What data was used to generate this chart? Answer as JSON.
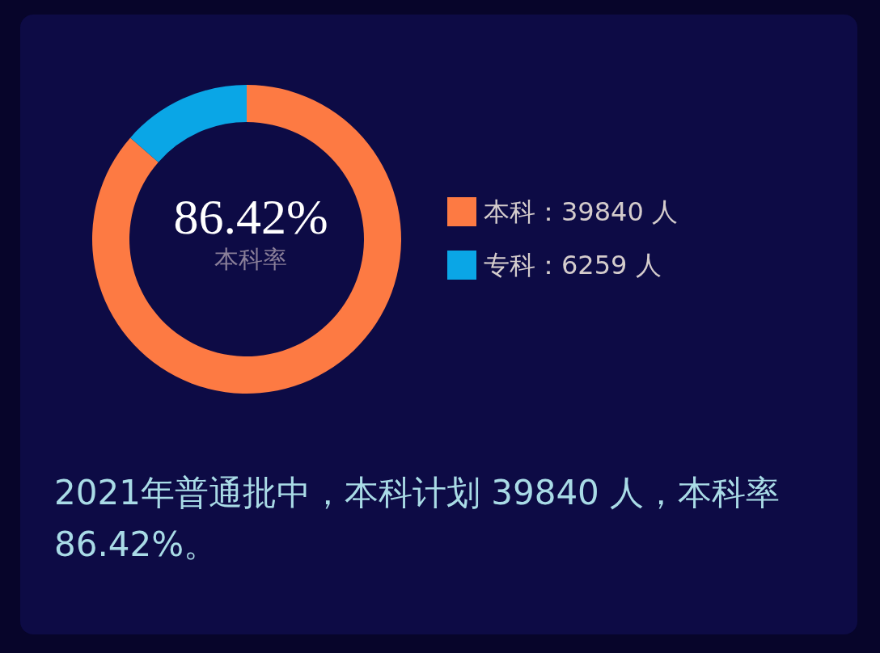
{
  "chart_data": {
    "type": "donut",
    "title": "86.42%",
    "subtitle": "本科率",
    "categories": [
      "本科",
      "专科"
    ],
    "values": [
      39840,
      6259
    ],
    "colors": [
      "#fd7a43",
      "#0aa6e6"
    ],
    "value_labels": [
      "39840 人",
      "6259 人"
    ],
    "legend": "right",
    "annotations": [
      "2021年普通批中，本科计划 39840 人，本科率 86.42%。"
    ]
  }
}
